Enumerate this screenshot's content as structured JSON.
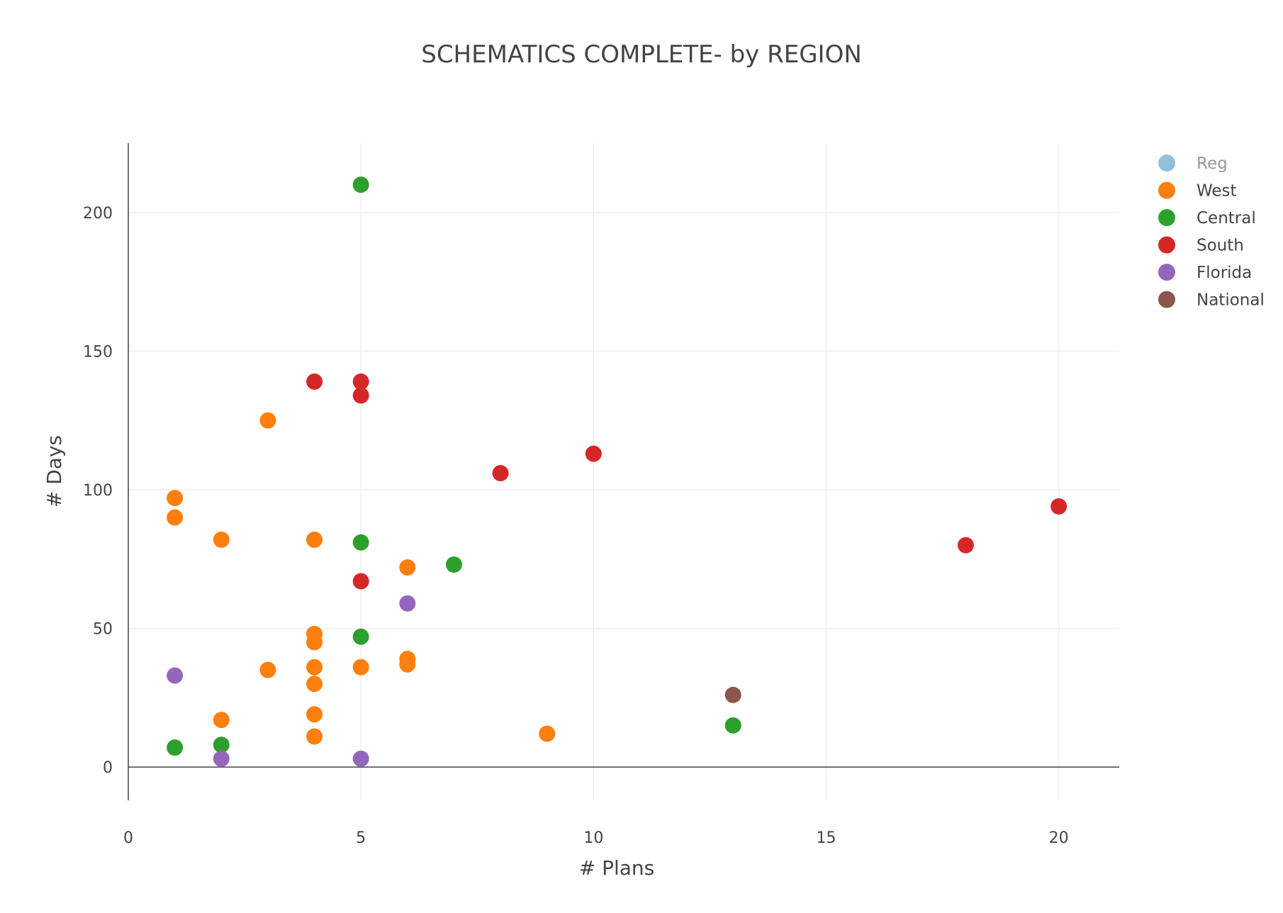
{
  "chart_data": {
    "type": "scatter",
    "title": "SCHEMATICS COMPLETE- by REGION",
    "xlabel": "# Plans",
    "ylabel": "# Days",
    "xlim": [
      0,
      21.3
    ],
    "ylim": [
      -12,
      225
    ],
    "xticks": [
      0,
      5,
      10,
      15,
      20
    ],
    "yticks": [
      0,
      50,
      100,
      150,
      200
    ],
    "grid": true,
    "legend_position": "top-right",
    "legend": [
      {
        "name": "Reg",
        "color": "#94bfdf",
        "muted": true
      },
      {
        "name": "West",
        "color": "#ff7f0e",
        "muted": false
      },
      {
        "name": "Central",
        "color": "#2ca02c",
        "muted": false
      },
      {
        "name": "South",
        "color": "#d62728",
        "muted": false
      },
      {
        "name": "Florida",
        "color": "#9467bd",
        "muted": false
      },
      {
        "name": "National",
        "color": "#8c564b",
        "muted": false
      }
    ],
    "series": [
      {
        "name": "West",
        "color": "#ff7f0e",
        "points": [
          [
            1,
            97
          ],
          [
            1,
            90
          ],
          [
            2,
            82
          ],
          [
            2,
            17
          ],
          [
            3,
            125
          ],
          [
            3,
            35
          ],
          [
            4,
            82
          ],
          [
            4,
            48
          ],
          [
            4,
            45
          ],
          [
            4,
            36
          ],
          [
            4,
            30
          ],
          [
            4,
            19
          ],
          [
            4,
            11
          ],
          [
            5,
            36
          ],
          [
            6,
            72
          ],
          [
            6,
            39
          ],
          [
            6,
            37
          ],
          [
            9,
            12
          ]
        ]
      },
      {
        "name": "Central",
        "color": "#2ca02c",
        "points": [
          [
            5,
            210
          ],
          [
            5,
            81
          ],
          [
            7,
            73
          ],
          [
            5,
            47
          ],
          [
            13,
            15
          ],
          [
            1,
            7
          ],
          [
            2,
            8
          ]
        ]
      },
      {
        "name": "South",
        "color": "#d62728",
        "points": [
          [
            4,
            139
          ],
          [
            5,
            139
          ],
          [
            5,
            134
          ],
          [
            10,
            113
          ],
          [
            8,
            106
          ],
          [
            20,
            94
          ],
          [
            18,
            80
          ],
          [
            5,
            67
          ]
        ]
      },
      {
        "name": "Florida",
        "color": "#9467bd",
        "points": [
          [
            6,
            59
          ],
          [
            1,
            33
          ],
          [
            2,
            3
          ],
          [
            5,
            3
          ]
        ]
      },
      {
        "name": "National",
        "color": "#8c564b",
        "points": [
          [
            13,
            26
          ]
        ]
      }
    ]
  }
}
